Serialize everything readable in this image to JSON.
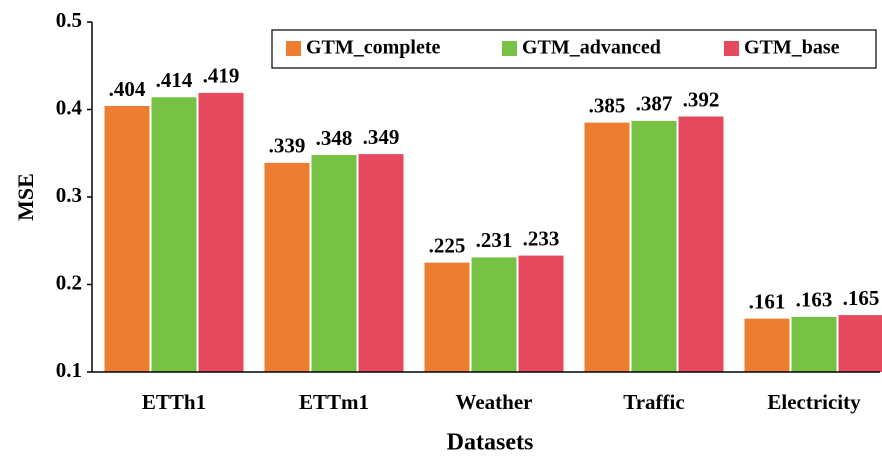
{
  "chart_data": {
    "type": "bar",
    "x_label": "Datasets",
    "y_label": "MSE",
    "categories": [
      "ETTh1",
      "ETTm1",
      "Weather",
      "Traffic",
      "Electricity"
    ],
    "series": [
      {
        "name": "GTM_complete",
        "color": "#ed7d31",
        "values": [
          0.404,
          0.339,
          0.225,
          0.385,
          0.161
        ],
        "value_labels": [
          ".404",
          ".339",
          ".225",
          ".385",
          ".161"
        ]
      },
      {
        "name": "GTM_advanced",
        "color": "#77c245",
        "values": [
          0.414,
          0.348,
          0.231,
          0.387,
          0.163
        ],
        "value_labels": [
          ".414",
          ".348",
          ".231",
          ".387",
          ".163"
        ]
      },
      {
        "name": "GTM_base",
        "color": "#e6485e",
        "values": [
          0.419,
          0.349,
          0.233,
          0.392,
          0.165
        ],
        "value_labels": [
          ".419",
          ".349",
          ".233",
          ".392",
          ".165"
        ]
      }
    ],
    "ylim": [
      0.1,
      0.5
    ],
    "yticks": [
      0.1,
      0.2,
      0.3,
      0.4,
      0.5
    ],
    "legend": "upper right"
  }
}
